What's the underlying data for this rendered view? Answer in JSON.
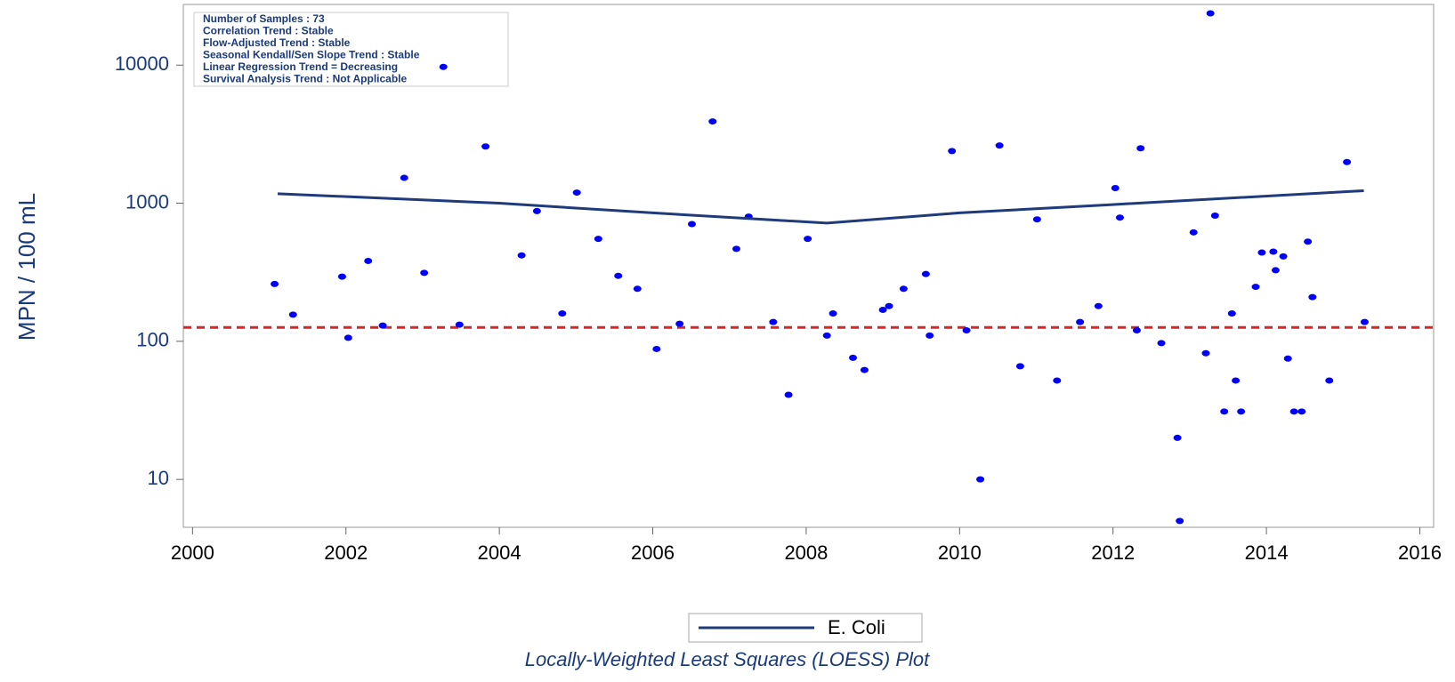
{
  "chart_data": {
    "type": "scatter",
    "ylabel": "MPN / 100 mL",
    "footer_title": "Locally-Weighted Least Squares (LOESS) Plot",
    "annotations": [
      "Number of Samples : 73",
      "Correlation Trend : Stable",
      "Flow-Adjusted Trend : Stable",
      "Seasonal Kendall/Sen Slope Trend : Stable",
      "Linear Regression Trend = Decreasing",
      "Survival Analysis Trend : Not Applicable"
    ],
    "log_y": true,
    "xlim": [
      1999.88,
      2016.18
    ],
    "ylim": [
      4.5,
      27500
    ],
    "xticks": [
      2000,
      2002,
      2004,
      2006,
      2008,
      2010,
      2012,
      2014,
      2016
    ],
    "yticks": [
      10,
      100,
      1000,
      10000
    ],
    "points": {
      "color": "#0000ff",
      "x": [
        2001.07,
        2001.31,
        2001.95,
        2002.03,
        2002.29,
        2002.48,
        2002.76,
        2003.02,
        2003.27,
        2003.48,
        2003.82,
        2004.29,
        2004.49,
        2004.82,
        2005.01,
        2005.29,
        2005.55,
        2005.8,
        2006.05,
        2006.35,
        2006.51,
        2006.78,
        2007.09,
        2007.25,
        2007.57,
        2007.77,
        2008.02,
        2008.27,
        2008.35,
        2008.61,
        2008.76,
        2009.0,
        2009.08,
        2009.27,
        2009.56,
        2009.61,
        2009.9,
        2010.09,
        2010.27,
        2010.52,
        2010.79,
        2011.01,
        2011.27,
        2011.57,
        2011.81,
        2012.03,
        2012.09,
        2012.31,
        2012.36,
        2012.63,
        2012.84,
        2012.87,
        2013.05,
        2013.21,
        2013.27,
        2013.33,
        2013.45,
        2013.55,
        2013.6,
        2013.67,
        2013.86,
        2013.94,
        2014.09,
        2014.12,
        2014.22,
        2014.28,
        2014.36,
        2014.46,
        2014.54,
        2014.6,
        2014.82,
        2015.05,
        2015.28
      ],
      "values": [
        260,
        156,
        294,
        106,
        382,
        130,
        1528,
        313,
        9700,
        132,
        2575,
        419,
        877,
        159,
        1194,
        552,
        298,
        240,
        88,
        134,
        706,
        3910,
        467,
        800,
        138,
        41,
        552,
        110,
        159,
        76,
        62,
        169,
        180,
        240,
        307,
        110,
        2387,
        120,
        10,
        2617,
        66,
        764,
        52,
        138,
        180,
        1288,
        787,
        120,
        2500,
        97,
        20,
        5,
        615,
        82,
        23700,
        813,
        31,
        159,
        52,
        31,
        248,
        439,
        446,
        327,
        412,
        75,
        31,
        31,
        527,
        209,
        52,
        1986,
        138
      ]
    },
    "series": [
      {
        "name": "E. Coli",
        "color": "#1f3b7c",
        "x": [
          2001.11,
          2004.0,
          2006.0,
          2008.27,
          2010.0,
          2011.99,
          2015.27
        ],
        "values": [
          1172,
          1000,
          851,
          718,
          851,
          977,
          1232
        ]
      }
    ],
    "reference_line": {
      "value": 126,
      "color": "#d62728"
    }
  }
}
